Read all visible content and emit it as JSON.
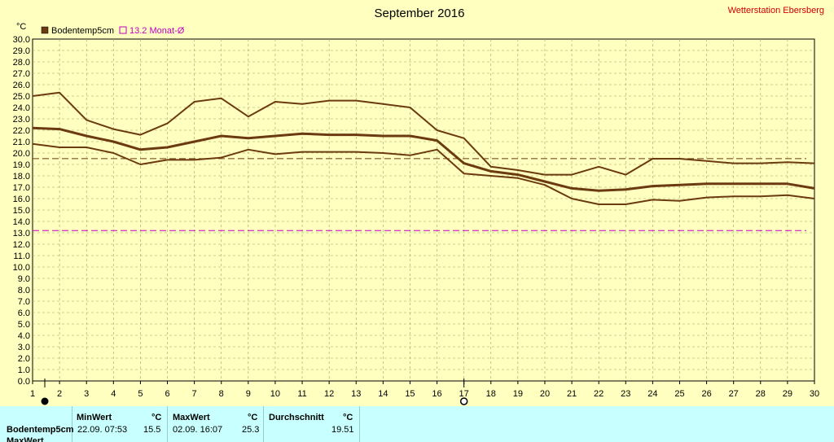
{
  "title": "September 2016",
  "station": "Wetterstation Ebersberg",
  "unit": "°C",
  "legend": [
    {
      "label": "Bodentemp5cm",
      "color": "#6b3a10"
    },
    {
      "label": "13.2 Monat-Ø",
      "color": "#c000c0"
    }
  ],
  "table": {
    "headers": {
      "min": "MinWert",
      "max": "MaxWert",
      "avg": "Durchschnitt",
      "unit": "°C"
    },
    "rows": [
      {
        "name": "Bodentemp5cm",
        "min_time": "22.09.  07:53",
        "min_val": "15.5",
        "max_time": "02.09.  16:07",
        "max_val": "25.3",
        "avg": "19.51"
      }
    ],
    "cutoff_label": "MaxWert"
  },
  "chart_data": {
    "type": "line",
    "title": "September 2016",
    "ylabel": "°C",
    "x": [
      1,
      2,
      3,
      4,
      5,
      6,
      7,
      8,
      9,
      10,
      11,
      12,
      13,
      14,
      15,
      16,
      17,
      18,
      19,
      20,
      21,
      22,
      23,
      24,
      25,
      26,
      27,
      28,
      29,
      30
    ],
    "xlim": [
      1,
      30
    ],
    "ylim": [
      0,
      30
    ],
    "ytick_step": 1.0,
    "grid": true,
    "series": [
      {
        "name": "Bodentemp5cm",
        "role": "max",
        "color": "#6b3a10",
        "values": [
          25.0,
          25.3,
          22.9,
          22.1,
          21.6,
          22.6,
          24.5,
          24.8,
          23.2,
          24.5,
          24.3,
          24.6,
          24.6,
          24.3,
          24.0,
          22.0,
          21.3,
          18.8,
          18.5,
          18.1,
          18.1,
          18.8,
          18.1,
          19.5,
          19.5,
          19.3,
          19.1,
          19.1,
          19.2,
          19.1
        ]
      },
      {
        "name": "Bodentemp5cm",
        "role": "avg",
        "color": "#6b3a10",
        "values": [
          22.2,
          22.1,
          21.5,
          21.0,
          20.3,
          20.5,
          21.0,
          21.5,
          21.3,
          21.5,
          21.7,
          21.6,
          21.6,
          21.5,
          21.5,
          21.1,
          19.1,
          18.4,
          18.1,
          17.5,
          16.9,
          16.7,
          16.8,
          17.1,
          17.2,
          17.3,
          17.3,
          17.3,
          17.3,
          16.9
        ]
      },
      {
        "name": "Bodentemp5cm",
        "role": "min",
        "color": "#6b3a10",
        "values": [
          20.8,
          20.5,
          20.5,
          20.0,
          19.0,
          19.4,
          19.4,
          19.6,
          20.3,
          19.9,
          20.1,
          20.1,
          20.1,
          20.0,
          19.8,
          20.3,
          18.2,
          18.0,
          17.8,
          17.2,
          16.0,
          15.5,
          15.5,
          15.9,
          15.8,
          16.1,
          16.2,
          16.2,
          16.3,
          16.0
        ]
      }
    ],
    "reference_lines": [
      {
        "name": "Bodentemp5cm Ø",
        "value": 19.51,
        "color": "#6b3a10"
      },
      {
        "name": "13.2 Monat-Ø",
        "value": 13.2,
        "color": "#c000c0"
      }
    ],
    "markers": [
      {
        "x": 1,
        "symbol": "new-moon"
      },
      {
        "x": 17,
        "symbol": "full-moon"
      }
    ]
  }
}
